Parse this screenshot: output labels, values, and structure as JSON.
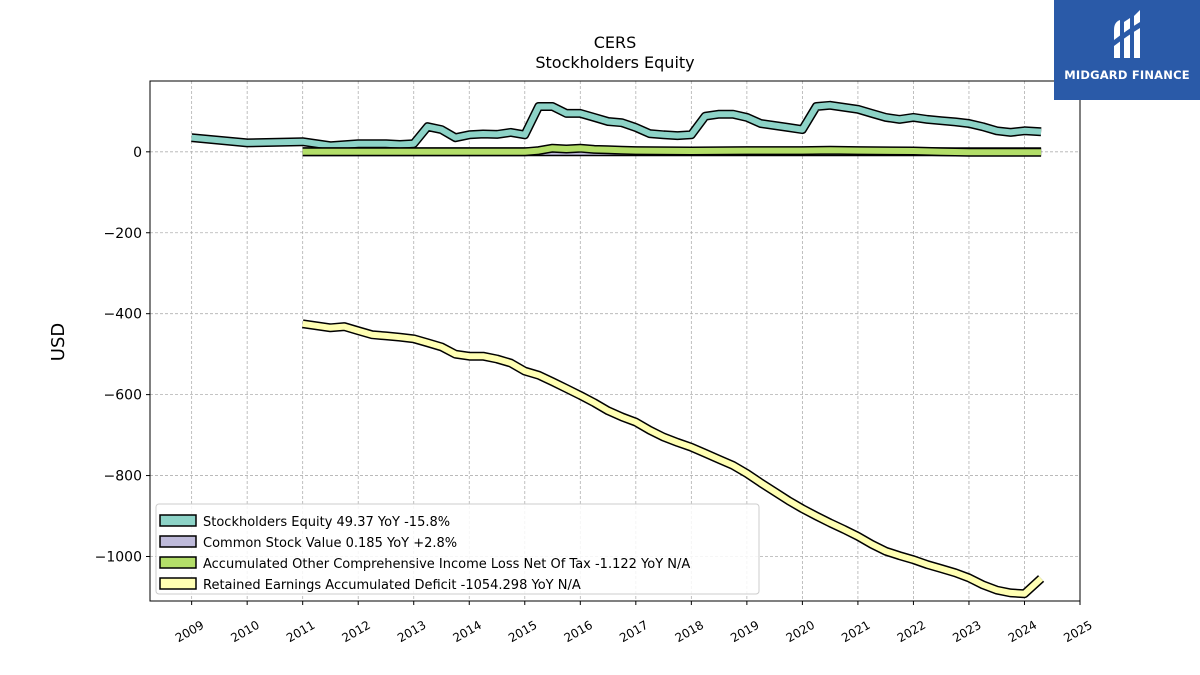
{
  "logo": {
    "text": "MIDGARD FINANCE"
  },
  "chart_data": {
    "type": "line",
    "title": "CERS",
    "subtitle": "Stockholders  Equity",
    "xlabel": "",
    "ylabel": "USD",
    "xlim": [
      2008.25,
      2025.0
    ],
    "ylim": [
      -1110,
      175
    ],
    "x_ticks": [
      "2009",
      "2010",
      "2011",
      "2012",
      "2013",
      "2014",
      "2015",
      "2016",
      "2017",
      "2018",
      "2019",
      "2020",
      "2021",
      "2022",
      "2023",
      "2024",
      "2025"
    ],
    "y_ticks": [
      0,
      -200,
      -400,
      -600,
      -800,
      -1000
    ],
    "y_tick_labels": [
      "0",
      "−200",
      "−400",
      "−600",
      "−800",
      "−1000"
    ],
    "grid": true,
    "legend_position": "lower-left",
    "series": [
      {
        "name": "Stockholders Equity  49.37 YoY -15.8%",
        "color": "#8dd3c7",
        "x": [
          2009.0,
          2010.0,
          2011.0,
          2011.5,
          2012.0,
          2012.5,
          2012.75,
          2013.0,
          2013.25,
          2013.5,
          2013.75,
          2014.0,
          2014.25,
          2014.5,
          2014.75,
          2015.0,
          2015.25,
          2015.5,
          2015.75,
          2016.0,
          2016.25,
          2016.5,
          2016.75,
          2017.0,
          2017.25,
          2017.5,
          2017.75,
          2018.0,
          2018.25,
          2018.5,
          2018.75,
          2019.0,
          2019.25,
          2019.5,
          2019.75,
          2020.0,
          2020.25,
          2020.5,
          2020.75,
          2021.0,
          2021.25,
          2021.5,
          2021.75,
          2022.0,
          2022.25,
          2022.5,
          2022.75,
          2023.0,
          2023.25,
          2023.5,
          2023.75,
          2024.0,
          2024.3
        ],
        "values": [
          35,
          22,
          25,
          15,
          20,
          20,
          18,
          20,
          62,
          55,
          35,
          42,
          44,
          43,
          48,
          42,
          112,
          112,
          95,
          95,
          85,
          75,
          72,
          60,
          45,
          42,
          40,
          42,
          88,
          93,
          93,
          85,
          70,
          65,
          60,
          55,
          112,
          115,
          110,
          105,
          95,
          85,
          80,
          85,
          80,
          77,
          74,
          70,
          62,
          52,
          48,
          52,
          49.37
        ]
      },
      {
        "name": "Common Stock Value  0.185 YoY +2.8%",
        "color": "#bebada",
        "x": [
          2011.0,
          2012.0,
          2013.0,
          2014.0,
          2015.0,
          2016.0,
          2017.0,
          2018.0,
          2019.0,
          2020.0,
          2021.0,
          2022.0,
          2023.0,
          2024.0,
          2024.3
        ],
        "values": [
          0.1,
          0.1,
          0.12,
          0.13,
          0.14,
          0.15,
          0.16,
          0.16,
          0.17,
          0.17,
          0.17,
          0.18,
          0.18,
          0.18,
          0.185
        ]
      },
      {
        "name": "Accumulated Other Comprehensive Income Loss Net Of Tax  -1.122 YoY N/A",
        "color": "#b3de69",
        "x": [
          2011.0,
          2012.0,
          2013.0,
          2014.0,
          2015.0,
          2015.25,
          2015.5,
          2015.75,
          2016.0,
          2016.25,
          2016.5,
          2016.75,
          2017.0,
          2018.0,
          2019.0,
          2020.0,
          2020.5,
          2021.0,
          2022.0,
          2022.5,
          2023.0,
          2023.5,
          2024.0,
          2024.3
        ],
        "values": [
          0,
          0,
          0,
          0,
          0,
          3,
          9,
          7,
          9,
          6,
          5,
          4,
          3,
          2,
          3,
          3,
          4,
          3,
          2,
          0,
          -1,
          -1,
          -1,
          -1.122
        ]
      },
      {
        "name": "Retained Earnings Accumulated Deficit  -1054.298 YoY N/A",
        "color": "#ffffb3",
        "x": [
          2011.0,
          2011.5,
          2011.75,
          2012.0,
          2012.25,
          2012.5,
          2012.75,
          2013.0,
          2013.25,
          2013.5,
          2013.75,
          2014.0,
          2014.25,
          2014.5,
          2014.75,
          2015.0,
          2015.25,
          2015.5,
          2015.75,
          2016.0,
          2016.25,
          2016.5,
          2016.75,
          2017.0,
          2017.25,
          2017.5,
          2017.75,
          2018.0,
          2018.25,
          2018.5,
          2018.75,
          2019.0,
          2019.25,
          2019.5,
          2019.75,
          2020.0,
          2020.25,
          2020.5,
          2020.75,
          2021.0,
          2021.25,
          2021.5,
          2021.75,
          2022.0,
          2022.25,
          2022.5,
          2022.75,
          2023.0,
          2023.25,
          2023.5,
          2023.75,
          2024.0,
          2024.3
        ],
        "values": [
          -425,
          -435,
          -432,
          -442,
          -452,
          -455,
          -458,
          -462,
          -472,
          -482,
          -500,
          -505,
          -505,
          -512,
          -522,
          -542,
          -552,
          -568,
          -585,
          -602,
          -620,
          -640,
          -655,
          -668,
          -688,
          -705,
          -718,
          -730,
          -745,
          -760,
          -775,
          -795,
          -818,
          -840,
          -862,
          -882,
          -900,
          -917,
          -933,
          -950,
          -970,
          -987,
          -998,
          -1008,
          -1020,
          -1030,
          -1040,
          -1053,
          -1070,
          -1083,
          -1090,
          -1092,
          -1054.298
        ]
      }
    ]
  }
}
